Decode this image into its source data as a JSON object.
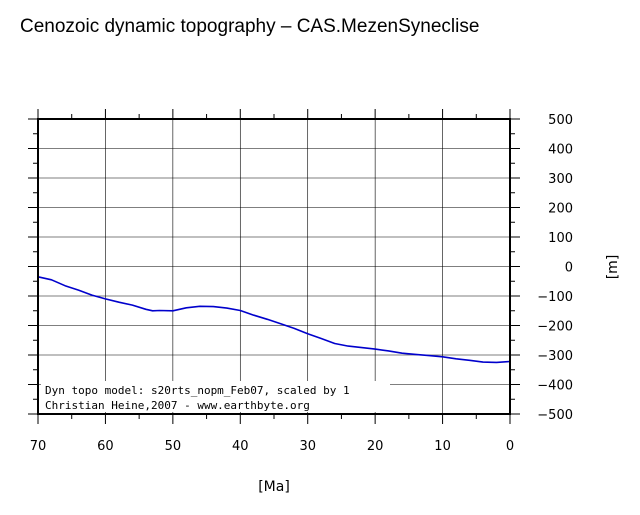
{
  "chart_data": {
    "type": "line",
    "title": "Cenozoic dynamic topography – CAS.MezenSyneclise",
    "xlabel": "[Ma]",
    "ylabel": "[m]",
    "xlim": [
      70,
      0
    ],
    "ylim": [
      -500,
      500
    ],
    "x_ticks": [
      70,
      60,
      50,
      40,
      30,
      20,
      10,
      0
    ],
    "x_tick_labels": [
      "70",
      "60",
      "50",
      "40",
      "30",
      "20",
      "10",
      "0"
    ],
    "y_ticks": [
      500,
      400,
      300,
      200,
      100,
      0,
      -100,
      -200,
      -300,
      -400,
      -500
    ],
    "y_tick_labels": [
      "500",
      "400",
      "300",
      "200",
      "100",
      "0",
      "−100",
      "−200",
      "−300",
      "−400",
      "−500"
    ],
    "grid": true,
    "line_color": "#0000cc",
    "series": [
      {
        "x": [
          70,
          68,
          66,
          64,
          62,
          60,
          58,
          56,
          54,
          53,
          52,
          50,
          48,
          46,
          44,
          42,
          40,
          38,
          36,
          34,
          32,
          30,
          28,
          26,
          24,
          22,
          20,
          18,
          16,
          14,
          12,
          10,
          8,
          6,
          4,
          2,
          0
        ],
        "values": [
          -35,
          -45,
          -65,
          -80,
          -97,
          -110,
          -121,
          -131,
          -145,
          -150,
          -149,
          -150,
          -140,
          -135,
          -136,
          -141,
          -149,
          -165,
          -179,
          -194,
          -210,
          -228,
          -244,
          -261,
          -270,
          -275,
          -280,
          -286,
          -294,
          -298,
          -302,
          -306,
          -313,
          -318,
          -324,
          -325,
          -322
        ]
      }
    ],
    "annotations": [
      "Dyn topo model: s20rts_nopm_Feb07, scaled by 1",
      "Christian Heine,2007 - www.earthbyte.org"
    ]
  }
}
